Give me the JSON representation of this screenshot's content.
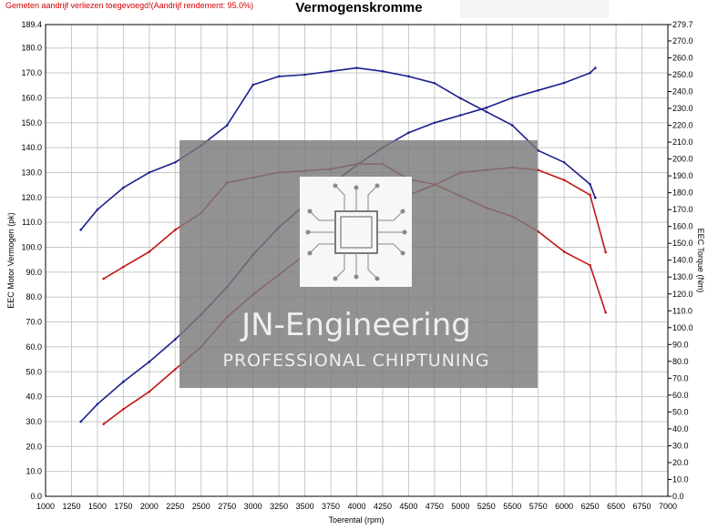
{
  "note": "Gemeten aandrijf verliezen toegevoegd!(Aandrijf rendement: 95.0%)",
  "chart_data": {
    "type": "line",
    "title": "Vermogenskromme",
    "xlabel": "Toerental (rpm)",
    "ylabel_left": "EEC Motor Vermogen (pk)",
    "ylabel_right": "EEC Torque (Nm)",
    "xlim": [
      1000,
      7000
    ],
    "ylim_left": [
      0,
      189.4
    ],
    "ylim_right": [
      0,
      279.7
    ],
    "x_ticks": [
      "1000",
      "1250",
      "1500",
      "1750",
      "2000",
      "2250",
      "2500",
      "2750",
      "3000",
      "3250",
      "3500",
      "3750",
      "4000",
      "4250",
      "4500",
      "4750",
      "5000",
      "5250",
      "5500",
      "5750",
      "6000",
      "6250",
      "6500",
      "6750",
      "7000"
    ],
    "y_left_ticks": [
      "0.0",
      "10.0",
      "20.0",
      "30.0",
      "40.0",
      "50.0",
      "60.0",
      "70.0",
      "80.0",
      "90.0",
      "100.0",
      "110.0",
      "120.0",
      "130.0",
      "140.0",
      "150.0",
      "160.0",
      "170.0",
      "180.0",
      "189.4"
    ],
    "y_right_ticks": [
      "0.0",
      "10.0",
      "20.0",
      "30.0",
      "40.0",
      "50.0",
      "60.0",
      "70.0",
      "80.0",
      "90.0",
      "100.0",
      "110.0",
      "120.0",
      "130.0",
      "140.0",
      "150.0",
      "160.0",
      "170.0",
      "180.0",
      "190.0",
      "200.0",
      "210.0",
      "220.0",
      "230.0",
      "240.0",
      "250.0",
      "260.0",
      "270.0",
      "279.7"
    ],
    "grid": true,
    "series": [
      {
        "axis": "left",
        "color": "#1a1f8c",
        "rpm": [
          1340,
          1500,
          1750,
          2000,
          2250,
          2500,
          2750,
          3000,
          3250,
          3500,
          3750,
          4000,
          4250,
          4500,
          4750,
          5000,
          5250,
          5500,
          5750,
          6000,
          6250,
          6300
        ],
        "values": [
          30,
          37,
          46,
          54,
          63,
          73,
          84,
          97,
          108,
          117,
          125,
          133,
          140,
          146,
          150,
          153,
          156,
          160,
          163,
          166,
          170,
          172
        ]
      },
      {
        "axis": "right",
        "color": "#1a1f8c",
        "rpm": [
          1340,
          1500,
          1750,
          2000,
          2250,
          2500,
          2750,
          3000,
          3250,
          3500,
          3750,
          4000,
          4250,
          4500,
          4750,
          5000,
          5250,
          5500,
          5750,
          6000,
          6250,
          6300
        ],
        "values": [
          158,
          170,
          183,
          192,
          198,
          208,
          220,
          244,
          249,
          250,
          252,
          254,
          252,
          249,
          245,
          236,
          228,
          220,
          205,
          198,
          185,
          177
        ]
      },
      {
        "axis": "left",
        "color": "#c01818",
        "rpm": [
          1560,
          1750,
          2000,
          2250,
          2500,
          2750,
          3000,
          3250,
          3500,
          3750,
          4000,
          4250,
          4500,
          4750,
          5000,
          5250,
          5500,
          5750,
          6000,
          6250,
          6400
        ],
        "values": [
          29,
          35,
          42,
          51,
          60,
          72,
          81,
          89,
          97,
          104,
          111,
          117,
          121,
          125,
          130,
          131,
          132,
          131,
          127,
          121,
          98
        ]
      },
      {
        "axis": "right",
        "color": "#c01818",
        "rpm": [
          1560,
          1750,
          2000,
          2250,
          2500,
          2750,
          3000,
          3250,
          3500,
          3750,
          4000,
          4250,
          4500,
          4750,
          5000,
          5250,
          5500,
          5750,
          6000,
          6250,
          6400
        ],
        "values": [
          129,
          136,
          145,
          158,
          168,
          186,
          189,
          192,
          193,
          194,
          197,
          197,
          188,
          185,
          178,
          171,
          166,
          157,
          145,
          137,
          109
        ]
      }
    ]
  },
  "watermark": {
    "line1": "JN-Engineering",
    "line2": "PROFESSIONAL CHIPTUNING"
  }
}
